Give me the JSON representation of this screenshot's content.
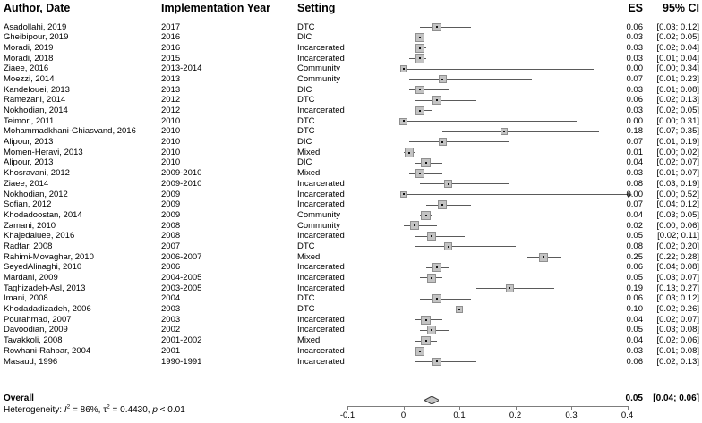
{
  "header": {
    "author_date": "Author, Date",
    "implementation_year": "Implementation Year",
    "setting": "Setting",
    "es": "ES",
    "ci": "95% CI"
  },
  "heterogeneity": {
    "prefix": "Heterogeneity: ",
    "i_label": "I",
    "i_sup": "2",
    "mid": " = 86%, τ",
    "tau_sup": "2",
    "after_tau": " = 0.4430, ",
    "p_label": "p",
    "p_suffix": " < 0.01"
  },
  "chart_data": {
    "type": "forest",
    "xlabel": "",
    "xlim": [
      -0.1,
      0.4
    ],
    "x_ticks": [
      -0.1,
      0,
      0.1,
      0.2,
      0.3,
      0.4
    ],
    "x_tick_labels": [
      "-0.1",
      "0",
      "0.1",
      "0.2",
      "0.3",
      "0.4"
    ],
    "reference_line_at": 0.05,
    "grid": false,
    "studies": [
      {
        "author": "Asadollahi, 2019",
        "year": "2017",
        "setting": "DTC",
        "es": 0.06,
        "lower": 0.03,
        "upper": 0.12
      },
      {
        "author": "Gheibipour, 2019",
        "year": "2016",
        "setting": "DIC",
        "es": 0.03,
        "lower": 0.02,
        "upper": 0.05
      },
      {
        "author": "Moradi, 2019",
        "year": "2016",
        "setting": "Incarcerated",
        "es": 0.03,
        "lower": 0.02,
        "upper": 0.04
      },
      {
        "author": "Moradi, 2018",
        "year": "2015",
        "setting": "Incarcerated",
        "es": 0.03,
        "lower": 0.01,
        "upper": 0.04
      },
      {
        "author": "Ziaee, 2016",
        "year": "2013-2014",
        "setting": "Community",
        "es": 0.0,
        "lower": 0.0,
        "upper": 0.34
      },
      {
        "author": "Moezzi, 2014",
        "year": "2013",
        "setting": "Community",
        "es": 0.07,
        "lower": 0.01,
        "upper": 0.23
      },
      {
        "author": "Kandelouei, 2013",
        "year": "2013",
        "setting": "DIC",
        "es": 0.03,
        "lower": 0.01,
        "upper": 0.08
      },
      {
        "author": "Ramezani, 2014",
        "year": "2012",
        "setting": "DTC",
        "es": 0.06,
        "lower": 0.02,
        "upper": 0.13
      },
      {
        "author": "Nokhodian, 2014",
        "year": "2012",
        "setting": "Incarcerated",
        "es": 0.03,
        "lower": 0.02,
        "upper": 0.05
      },
      {
        "author": "Teimori, 2011",
        "year": "2010",
        "setting": "DTC",
        "es": 0.0,
        "lower": 0.0,
        "upper": 0.31
      },
      {
        "author": "Mohammadkhani-Ghiasvand, 2016",
        "year": "2010",
        "setting": "DTC",
        "es": 0.18,
        "lower": 0.07,
        "upper": 0.35
      },
      {
        "author": "Alipour, 2013",
        "year": "2010",
        "setting": "DIC",
        "es": 0.07,
        "lower": 0.01,
        "upper": 0.19
      },
      {
        "author": "Momen-Heravi, 2013",
        "year": "2010",
        "setting": "Mixed",
        "es": 0.01,
        "lower": 0.0,
        "upper": 0.02
      },
      {
        "author": "Alipour, 2013",
        "year": "2010",
        "setting": "DIC",
        "es": 0.04,
        "lower": 0.02,
        "upper": 0.07
      },
      {
        "author": "Khosravani, 2012",
        "year": "2009-2010",
        "setting": "Mixed",
        "es": 0.03,
        "lower": 0.01,
        "upper": 0.07
      },
      {
        "author": "Ziaee, 2014",
        "year": "2009-2010",
        "setting": "Incarcerated",
        "es": 0.08,
        "lower": 0.03,
        "upper": 0.19
      },
      {
        "author": "Nokhodian, 2012",
        "year": "2009",
        "setting": "Incarcerated",
        "es": 0.0,
        "lower": 0.0,
        "upper": 0.52
      },
      {
        "author": "Sofian, 2012",
        "year": "2009",
        "setting": "Incarcerated",
        "es": 0.07,
        "lower": 0.04,
        "upper": 0.12
      },
      {
        "author": "Khodadoostan, 2014",
        "year": "2009",
        "setting": "Community",
        "es": 0.04,
        "lower": 0.03,
        "upper": 0.05
      },
      {
        "author": "Zamani, 2010",
        "year": "2008",
        "setting": "Community",
        "es": 0.02,
        "lower": 0.0,
        "upper": 0.06
      },
      {
        "author": "Khajedaluee, 2016",
        "year": "2008",
        "setting": "Incarcerated",
        "es": 0.05,
        "lower": 0.02,
        "upper": 0.11
      },
      {
        "author": "Radfar, 2008",
        "year": "2007",
        "setting": "DTC",
        "es": 0.08,
        "lower": 0.02,
        "upper": 0.2
      },
      {
        "author": "Rahimi-Movaghar, 2010",
        "year": "2006-2007",
        "setting": "Mixed",
        "es": 0.25,
        "lower": 0.22,
        "upper": 0.28
      },
      {
        "author": "SeyedAlinaghi, 2010",
        "year": "2006",
        "setting": "Incarcerated",
        "es": 0.06,
        "lower": 0.04,
        "upper": 0.08
      },
      {
        "author": "Mardani, 2009",
        "year": "2004-2005",
        "setting": "Incarcerated",
        "es": 0.05,
        "lower": 0.03,
        "upper": 0.07
      },
      {
        "author": "Taghizadeh-Asl, 2013",
        "year": "2003-2005",
        "setting": "Incarcerated",
        "es": 0.19,
        "lower": 0.13,
        "upper": 0.27
      },
      {
        "author": "Imani, 2008",
        "year": "2004",
        "setting": "DTC",
        "es": 0.06,
        "lower": 0.03,
        "upper": 0.12
      },
      {
        "author": "Khodadadizadeh, 2006",
        "year": "2003",
        "setting": "DTC",
        "es": 0.1,
        "lower": 0.02,
        "upper": 0.26
      },
      {
        "author": "Pourahmad, 2007",
        "year": "2003",
        "setting": "Incarcerated",
        "es": 0.04,
        "lower": 0.02,
        "upper": 0.07
      },
      {
        "author": "Davoodian, 2009",
        "year": "2002",
        "setting": "Incarcerated",
        "es": 0.05,
        "lower": 0.03,
        "upper": 0.08
      },
      {
        "author": "Tavakkoli, 2008",
        "year": "2001-2002",
        "setting": "Mixed",
        "es": 0.04,
        "lower": 0.02,
        "upper": 0.06
      },
      {
        "author": "Rowhani-Rahbar, 2004",
        "year": "2001",
        "setting": "Incarcerated",
        "es": 0.03,
        "lower": 0.01,
        "upper": 0.08
      },
      {
        "author": "Masaud, 1996",
        "year": "1990-1991",
        "setting": "Incarcerated",
        "es": 0.06,
        "lower": 0.02,
        "upper": 0.13
      }
    ],
    "overall": {
      "label": "Overall",
      "es": 0.05,
      "lower": 0.04,
      "upper": 0.06
    }
  },
  "colors": {
    "square_fill": "#c3c3c3",
    "square_border": "#8f8f8f",
    "line": "#5a5a5a",
    "axis": "#7d7d7d",
    "diamond_fill": "#c3c3c3",
    "diamond_border": "#3d3d3d",
    "text": "#000000"
  }
}
